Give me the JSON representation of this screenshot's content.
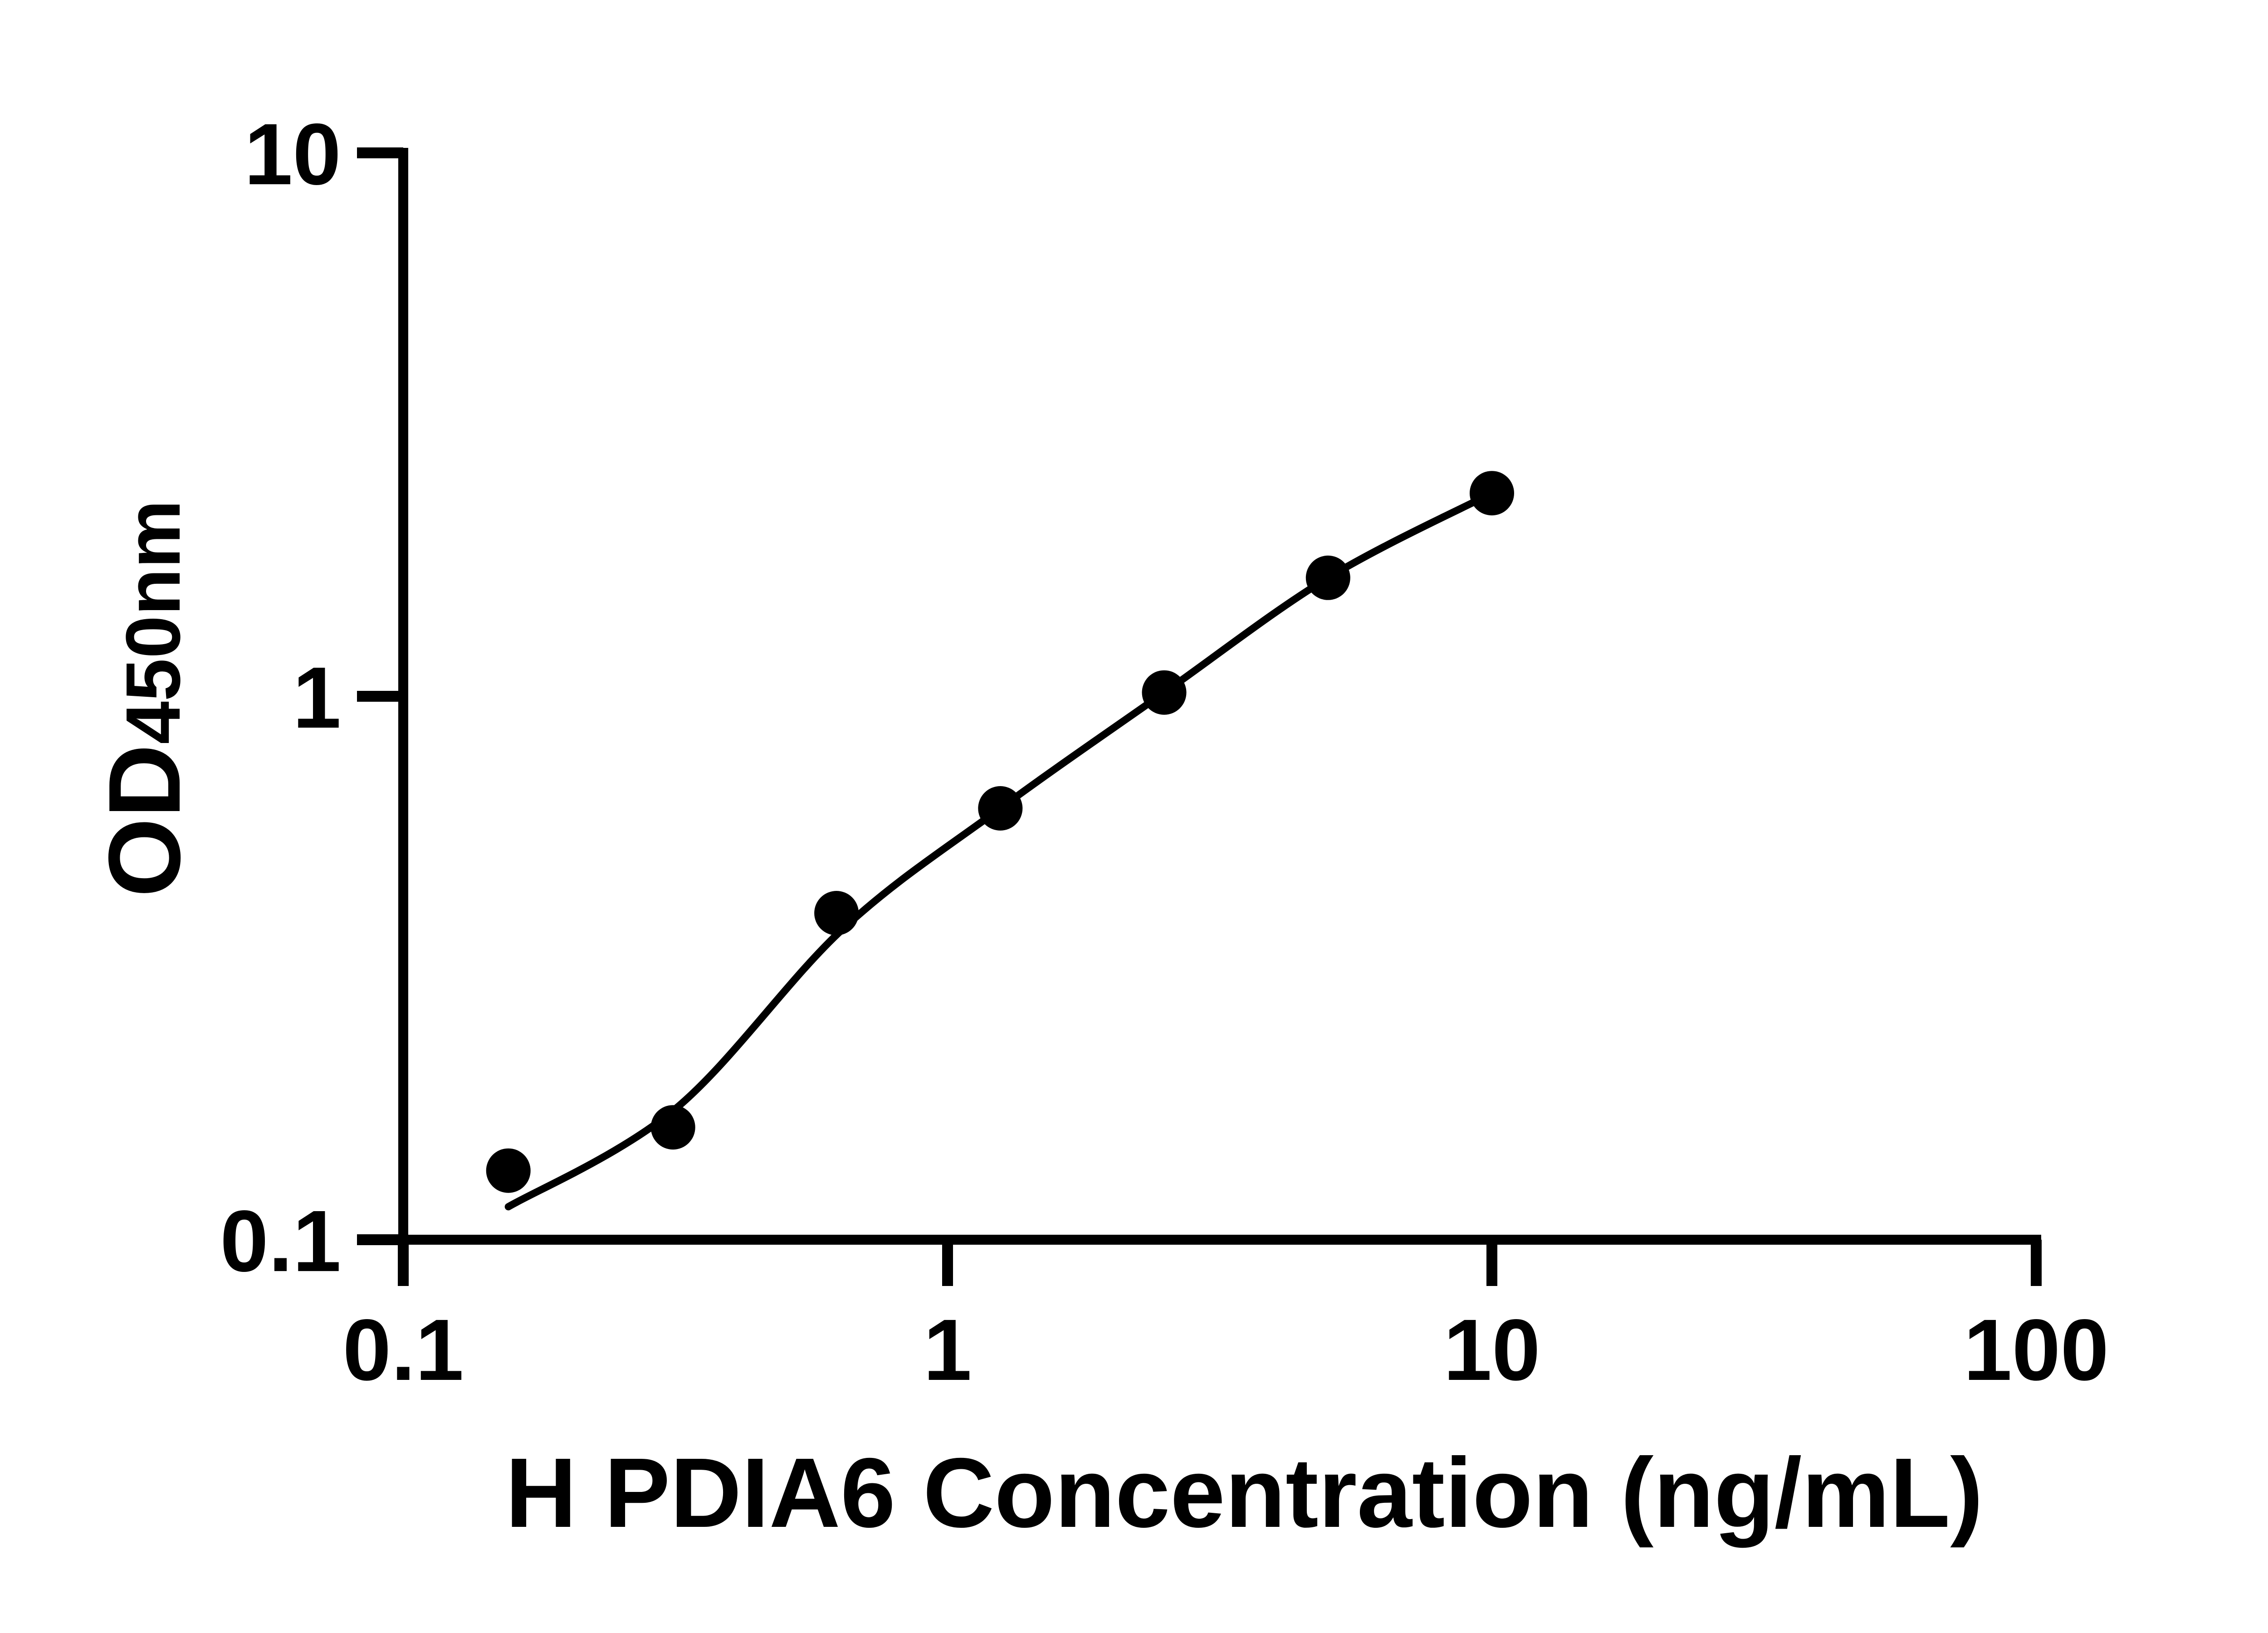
{
  "figure": {
    "background_color": "#ffffff",
    "ink_color": "#000000"
  },
  "chart_data": {
    "type": "scatter",
    "title": "",
    "xlabel": "H PDIA6 Concentration (ng/mL)",
    "ylabel_main": "OD",
    "ylabel_sub": "450nm",
    "x_scale": "log",
    "y_scale": "log",
    "xlim": [
      0.1,
      100
    ],
    "ylim": [
      0.1,
      10
    ],
    "grid": false,
    "legend": null,
    "x_ticks": [
      {
        "value": 0.1,
        "label": "0.1"
      },
      {
        "value": 1,
        "label": "1"
      },
      {
        "value": 10,
        "label": "10"
      },
      {
        "value": 100,
        "label": "100"
      }
    ],
    "y_ticks": [
      {
        "value": 0.1,
        "label": "0.1"
      },
      {
        "value": 1,
        "label": "1"
      },
      {
        "value": 10,
        "label": "10"
      }
    ],
    "series": [
      {
        "name": "standard-curve-points",
        "marker": "filled-circle",
        "color": "#000000",
        "x": [
          0.156,
          0.313,
          0.625,
          1.25,
          2.5,
          5,
          10
        ],
        "y": [
          0.134,
          0.161,
          0.399,
          0.622,
          1.016,
          1.652,
          2.365
        ]
      }
    ],
    "fit_curve": {
      "name": "fitted-standard-curve",
      "color": "#000000",
      "points": [
        [
          0.156,
          0.115
        ],
        [
          0.316,
          0.174
        ],
        [
          0.64,
          0.372
        ],
        [
          1.25,
          0.622
        ],
        [
          2.5,
          1.016
        ],
        [
          5,
          1.652
        ],
        [
          10,
          2.365
        ]
      ]
    }
  }
}
